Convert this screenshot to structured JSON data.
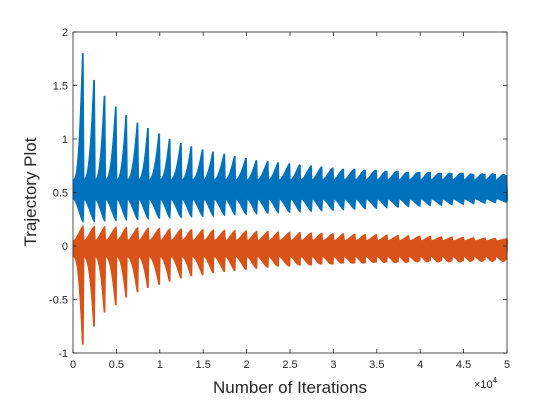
{
  "chart_data": {
    "type": "line",
    "xlabel": "Number of Iterations",
    "ylabel": "Trajectory Plot",
    "x_exponent_base": "×10",
    "x_exponent_power": "4",
    "xlim": [
      0,
      5
    ],
    "ylim": [
      -1,
      2
    ],
    "x_ticks": [
      0,
      0.5,
      1,
      1.5,
      2,
      2.5,
      3,
      3.5,
      4,
      4.5,
      5
    ],
    "y_ticks": [
      -1,
      -0.5,
      0,
      0.5,
      1,
      1.5,
      2
    ],
    "x_tick_labels": [
      "0",
      "0.5",
      "1",
      "1.5",
      "2",
      "2.5",
      "3",
      "3.5",
      "4",
      "4.5",
      "5"
    ],
    "y_tick_labels": [
      "-1",
      "-0.5",
      "0",
      "0.5",
      "1",
      "1.5",
      "2"
    ],
    "grid": false,
    "legend": "none",
    "series": [
      {
        "color": "#0072BD",
        "burst_x": [
          0.12,
          0.25,
          0.37,
          0.5,
          0.62,
          0.75,
          0.87,
          1.0,
          1.12,
          1.25,
          1.37,
          1.5,
          1.62,
          1.75,
          1.87,
          2.0,
          2.12,
          2.25,
          2.37,
          2.5,
          2.62,
          2.75,
          2.87,
          3.0,
          3.12,
          3.25,
          3.37,
          3.5,
          3.62,
          3.75,
          3.87,
          4.0,
          4.12,
          4.25,
          4.37,
          4.5,
          4.62,
          4.75,
          4.87,
          5.0
        ],
        "burst_peak": [
          1.8,
          1.55,
          1.4,
          1.3,
          1.22,
          1.15,
          1.1,
          1.05,
          1.0,
          0.96,
          0.93,
          0.9,
          0.88,
          0.86,
          0.84,
          0.82,
          0.8,
          0.79,
          0.78,
          0.77,
          0.76,
          0.75,
          0.74,
          0.73,
          0.72,
          0.72,
          0.71,
          0.71,
          0.7,
          0.7,
          0.69,
          0.69,
          0.69,
          0.68,
          0.68,
          0.68,
          0.67,
          0.67,
          0.67,
          0.66
        ],
        "band_upper": 0.62,
        "band_lower": 0.44,
        "trough": 0.22
      },
      {
        "color": "#D95319",
        "burst_x": [
          0.12,
          0.25,
          0.37,
          0.5,
          0.62,
          0.75,
          0.87,
          1.0,
          1.12,
          1.25,
          1.37,
          1.5,
          1.62,
          1.75,
          1.87,
          2.0,
          2.12,
          2.25,
          2.37,
          2.5,
          2.62,
          2.75,
          2.87,
          3.0,
          3.12,
          3.25,
          3.37,
          3.5,
          3.62,
          3.75,
          3.87,
          4.0,
          4.12,
          4.25,
          4.37,
          4.5,
          4.62,
          4.75,
          4.87,
          5.0
        ],
        "burst_peak": [
          -0.92,
          -0.75,
          -0.62,
          -0.55,
          -0.48,
          -0.43,
          -0.39,
          -0.36,
          -0.33,
          -0.3,
          -0.28,
          -0.27,
          -0.25,
          -0.24,
          -0.23,
          -0.22,
          -0.21,
          -0.2,
          -0.19,
          -0.19,
          -0.18,
          -0.18,
          -0.17,
          -0.17,
          -0.16,
          -0.16,
          -0.16,
          -0.15,
          -0.15,
          -0.15,
          -0.15,
          -0.14,
          -0.14,
          -0.14,
          -0.14,
          -0.14,
          -0.13,
          -0.13,
          -0.13,
          -0.13
        ],
        "band_upper": 0.05,
        "band_lower": -0.1,
        "trough": 0.14
      }
    ]
  }
}
